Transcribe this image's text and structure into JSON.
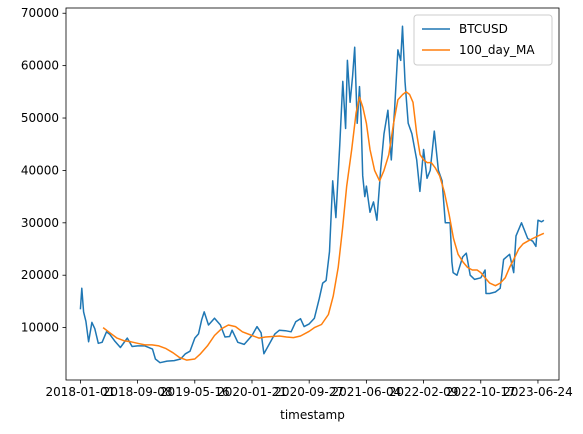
{
  "chart_data": {
    "type": "line",
    "title": "",
    "xlabel": "timestamp",
    "ylabel": "",
    "xlim": [
      "2017-10-30",
      "2023-09-24"
    ],
    "ylim": [
      0,
      71000
    ],
    "grid": false,
    "legend_position": "top-right",
    "x_ticks": [
      "2018-01-01",
      "2018-09-08",
      "2019-05-16",
      "2020-01-21",
      "2020-09-27",
      "2021-06-04",
      "2022-02-09",
      "2022-10-17",
      "2023-06-24"
    ],
    "y_ticks": [
      10000,
      20000,
      30000,
      40000,
      50000,
      60000,
      70000
    ],
    "series": [
      {
        "name": "BTCUSD",
        "color": "#1f77b4",
        "x": [
          "2018-01-01",
          "2018-01-07",
          "2018-01-15",
          "2018-01-25",
          "2018-02-06",
          "2018-02-20",
          "2018-03-05",
          "2018-03-20",
          "2018-04-06",
          "2018-04-25",
          "2018-05-10",
          "2018-05-30",
          "2018-06-25",
          "2018-07-25",
          "2018-08-15",
          "2018-09-08",
          "2018-10-10",
          "2018-11-12",
          "2018-11-25",
          "2018-12-15",
          "2019-01-15",
          "2019-02-15",
          "2019-03-15",
          "2019-04-05",
          "2019-04-25",
          "2019-05-16",
          "2019-06-01",
          "2019-06-15",
          "2019-06-26",
          "2019-07-15",
          "2019-08-10",
          "2019-09-05",
          "2019-09-25",
          "2019-10-15",
          "2019-10-26",
          "2019-11-20",
          "2019-12-18",
          "2020-01-21",
          "2020-02-12",
          "2020-03-01",
          "2020-03-13",
          "2020-04-05",
          "2020-04-30",
          "2020-05-20",
          "2020-06-15",
          "2020-07-10",
          "2020-07-30",
          "2020-08-20",
          "2020-09-05",
          "2020-09-27",
          "2020-10-20",
          "2020-11-10",
          "2020-11-25",
          "2020-12-10",
          "2020-12-25",
          "2021-01-08",
          "2021-01-22",
          "2021-02-08",
          "2021-02-21",
          "2021-03-05",
          "2021-03-13",
          "2021-03-25",
          "2021-04-05",
          "2021-04-14",
          "2021-04-25",
          "2021-05-05",
          "2021-05-12",
          "2021-05-19",
          "2021-05-28",
          "2021-06-04",
          "2021-06-20",
          "2021-07-05",
          "2021-07-20",
          "2021-08-05",
          "2021-08-20",
          "2021-09-06",
          "2021-09-21",
          "2021-10-06",
          "2021-10-20",
          "2021-11-01",
          "2021-11-09",
          "2021-11-20",
          "2021-12-04",
          "2021-12-20",
          "2022-01-10",
          "2022-01-24",
          "2022-02-09",
          "2022-02-24",
          "2022-03-10",
          "2022-03-28",
          "2022-04-15",
          "2022-05-01",
          "2022-05-08",
          "2022-05-15",
          "2022-06-05",
          "2022-06-13",
          "2022-06-18",
          "2022-07-05",
          "2022-07-30",
          "2022-08-15",
          "2022-09-01",
          "2022-09-20",
          "2022-10-17",
          "2022-11-05",
          "2022-11-09",
          "2022-11-25",
          "2022-12-20",
          "2023-01-10",
          "2023-01-25",
          "2023-02-20",
          "2023-03-10",
          "2023-03-20",
          "2023-04-13",
          "2023-05-10",
          "2023-06-01",
          "2023-06-15",
          "2023-06-24",
          "2023-07-10",
          "2023-07-20"
        ],
        "y": [
          13500,
          17500,
          13000,
          11200,
          7300,
          11000,
          9800,
          7000,
          7200,
          9200,
          8700,
          7500,
          6200,
          8000,
          6400,
          6500,
          6500,
          5900,
          4000,
          3300,
          3600,
          3700,
          4000,
          5000,
          5500,
          8000,
          8800,
          11500,
          13000,
          10500,
          11800,
          10500,
          8200,
          8300,
          9500,
          7200,
          6800,
          8500,
          10200,
          9000,
          5000,
          6800,
          8800,
          9500,
          9400,
          9200,
          11100,
          11700,
          10200,
          10700,
          11800,
          15500,
          18500,
          19000,
          24500,
          38000,
          31000,
          45000,
          57000,
          48000,
          61000,
          53000,
          58000,
          63500,
          49000,
          56000,
          50000,
          39000,
          35000,
          37000,
          32000,
          34000,
          30500,
          40000,
          47000,
          51500,
          42000,
          52000,
          63000,
          61000,
          67500,
          57000,
          49000,
          47000,
          42000,
          36000,
          44000,
          38500,
          40000,
          47500,
          40000,
          38000,
          34000,
          30000,
          30000,
          22500,
          20500,
          20000,
          23500,
          24200,
          20000,
          19200,
          19500,
          21000,
          16500,
          16500,
          16800,
          17500,
          23000,
          24000,
          20500,
          27500,
          30000,
          27000,
          26500,
          25500,
          30500,
          30200,
          30500
        ]
      },
      {
        "name": "100_day_MA",
        "color": "#ff7f0e",
        "x": [
          "2018-04-10",
          "2018-05-10",
          "2018-06-10",
          "2018-07-10",
          "2018-08-10",
          "2018-09-08",
          "2018-10-10",
          "2018-11-10",
          "2018-12-10",
          "2019-01-10",
          "2019-02-10",
          "2019-03-10",
          "2019-04-10",
          "2019-05-16",
          "2019-06-10",
          "2019-07-10",
          "2019-08-10",
          "2019-09-10",
          "2019-10-10",
          "2019-11-10",
          "2019-12-10",
          "2020-01-21",
          "2020-02-20",
          "2020-03-20",
          "2020-04-20",
          "2020-05-20",
          "2020-06-20",
          "2020-07-20",
          "2020-08-20",
          "2020-09-27",
          "2020-10-20",
          "2020-11-20",
          "2020-12-20",
          "2021-01-10",
          "2021-02-01",
          "2021-02-20",
          "2021-03-10",
          "2021-04-01",
          "2021-04-20",
          "2021-05-05",
          "2021-05-20",
          "2021-06-04",
          "2021-06-20",
          "2021-07-10",
          "2021-08-01",
          "2021-08-20",
          "2021-09-10",
          "2021-10-01",
          "2021-10-20",
          "2021-11-10",
          "2021-11-25",
          "2021-12-10",
          "2021-12-25",
          "2022-01-10",
          "2022-01-25",
          "2022-02-09",
          "2022-02-25",
          "2022-03-15",
          "2022-04-01",
          "2022-04-20",
          "2022-05-10",
          "2022-06-01",
          "2022-06-20",
          "2022-07-10",
          "2022-08-01",
          "2022-08-20",
          "2022-09-10",
          "2022-10-01",
          "2022-10-17",
          "2022-11-05",
          "2022-11-25",
          "2022-12-20",
          "2023-01-10",
          "2023-02-01",
          "2023-02-20",
          "2023-03-10",
          "2023-04-01",
          "2023-04-20",
          "2023-05-10",
          "2023-06-01",
          "2023-06-24",
          "2023-07-10",
          "2023-07-20"
        ],
        "y": [
          10000,
          9000,
          8000,
          7500,
          7300,
          7000,
          6700,
          6700,
          6500,
          6000,
          5200,
          4300,
          3800,
          4000,
          5000,
          6500,
          8500,
          9800,
          10500,
          10200,
          9200,
          8500,
          8000,
          8200,
          8300,
          8400,
          8200,
          8100,
          8400,
          9300,
          10000,
          10600,
          12500,
          16000,
          21500,
          29000,
          37000,
          44000,
          51000,
          54000,
          52000,
          49000,
          44000,
          40000,
          38000,
          40000,
          43000,
          49000,
          53500,
          54500,
          55000,
          54500,
          53000,
          47000,
          43000,
          42000,
          41500,
          41500,
          40500,
          39000,
          36000,
          31500,
          27000,
          24000,
          22500,
          21500,
          21000,
          21000,
          20500,
          19500,
          18500,
          18000,
          18500,
          19500,
          21500,
          23000,
          25000,
          26000,
          26500,
          27000,
          27500,
          27800,
          28000
        ]
      }
    ]
  }
}
